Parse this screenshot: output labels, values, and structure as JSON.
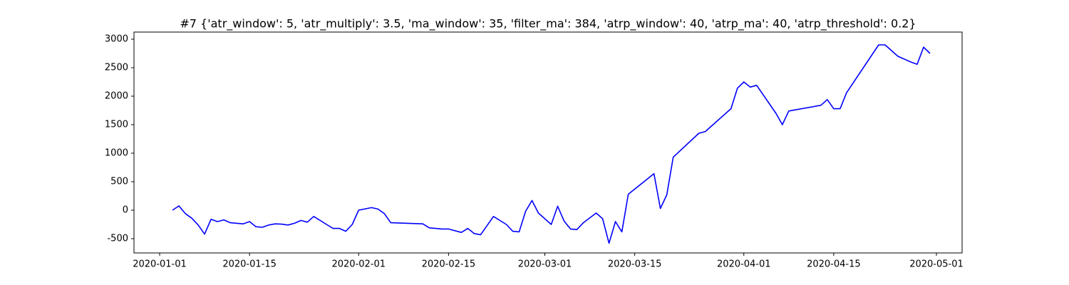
{
  "chart_data": {
    "type": "line",
    "title": "#7 {'atr_window': 5, 'atr_multiply': 3.5, 'ma_window': 35, 'filter_ma': 384, 'atrp_window': 40, 'atrp_ma': 40, 'atrp_threshold': 0.2}",
    "x": [
      "2020-01-03",
      "2020-01-04",
      "2020-01-05",
      "2020-01-06",
      "2020-01-07",
      "2020-01-08",
      "2020-01-09",
      "2020-01-10",
      "2020-01-11",
      "2020-01-12",
      "2020-01-14",
      "2020-01-15",
      "2020-01-16",
      "2020-01-17",
      "2020-01-18",
      "2020-01-19",
      "2020-01-20",
      "2020-01-21",
      "2020-01-22",
      "2020-01-23",
      "2020-01-24",
      "2020-01-25",
      "2020-01-27",
      "2020-01-28",
      "2020-01-29",
      "2020-01-30",
      "2020-01-31",
      "2020-02-01",
      "2020-02-03",
      "2020-02-04",
      "2020-02-05",
      "2020-02-06",
      "2020-02-11",
      "2020-02-12",
      "2020-02-13",
      "2020-02-14",
      "2020-02-15",
      "2020-02-17",
      "2020-02-18",
      "2020-02-19",
      "2020-02-20",
      "2020-02-22",
      "2020-02-24",
      "2020-02-25",
      "2020-02-26",
      "2020-02-27",
      "2020-02-28",
      "2020-02-29",
      "2020-03-02",
      "2020-03-03",
      "2020-03-04",
      "2020-03-05",
      "2020-03-06",
      "2020-03-07",
      "2020-03-09",
      "2020-03-10",
      "2020-03-11",
      "2020-03-12",
      "2020-03-13",
      "2020-03-14",
      "2020-03-18",
      "2020-03-19",
      "2020-03-20",
      "2020-03-21",
      "2020-03-25",
      "2020-03-26",
      "2020-03-27",
      "2020-03-30",
      "2020-03-31",
      "2020-04-01",
      "2020-04-02",
      "2020-04-03",
      "2020-04-06",
      "2020-04-07",
      "2020-04-08",
      "2020-04-13",
      "2020-04-14",
      "2020-04-15",
      "2020-04-16",
      "2020-04-17",
      "2020-04-22",
      "2020-04-23",
      "2020-04-24",
      "2020-04-25",
      "2020-04-27",
      "2020-04-28",
      "2020-04-29",
      "2020-04-30"
    ],
    "series": [
      {
        "color": "#0000ff",
        "values": [
          0,
          75,
          -60,
          -140,
          -260,
          -420,
          -160,
          -200,
          -170,
          -220,
          -240,
          -200,
          -290,
          -300,
          -260,
          -240,
          -245,
          -260,
          -230,
          -180,
          -210,
          -110,
          -250,
          -320,
          -320,
          -370,
          -250,
          0,
          45,
          20,
          -60,
          -220,
          -240,
          -310,
          -320,
          -330,
          -330,
          -390,
          -320,
          -410,
          -430,
          -110,
          -250,
          -370,
          -380,
          -20,
          170,
          -50,
          -250,
          70,
          -190,
          -330,
          -340,
          -220,
          -50,
          -150,
          -580,
          -200,
          -380,
          280,
          640,
          30,
          270,
          930,
          1350,
          1380,
          1480,
          1780,
          2140,
          2250,
          2160,
          2190,
          1700,
          1500,
          1740,
          1840,
          1940,
          1780,
          1780,
          2060,
          2900,
          2900,
          2800,
          2700,
          2600,
          2560,
          2860,
          2750
        ]
      }
    ],
    "xlim": [
      "2019-12-28",
      "2020-05-05"
    ],
    "xticks": [
      "2020-01-01",
      "2020-01-15",
      "2020-02-01",
      "2020-02-15",
      "2020-03-01",
      "2020-03-15",
      "2020-04-01",
      "2020-04-15",
      "2020-05-01"
    ],
    "ylim": [
      -750,
      3125
    ],
    "yticks": [
      -500,
      0,
      500,
      1000,
      1500,
      2000,
      2500,
      3000
    ]
  }
}
